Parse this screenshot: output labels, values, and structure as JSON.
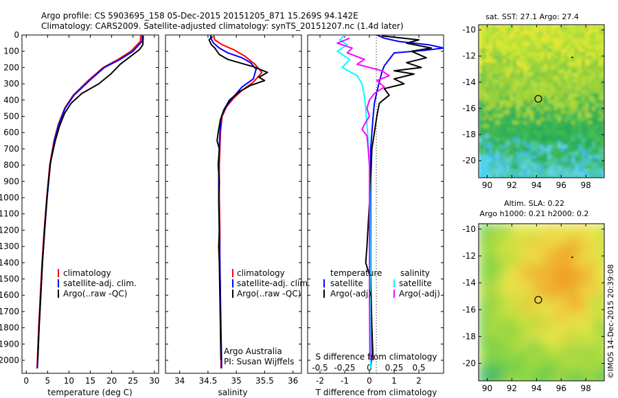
{
  "header": {
    "line1": "Argo profile: CS 5903695_158 05-Dec-2015 20151205_871 15.269S 94.142E",
    "line2": "Climatology: CARS2009. Satellite-adjusted climatology: synTS_20151207.nc (1.4d later)"
  },
  "credits": {
    "imos": "©IMOS 14-Dec-2015 20:39:08",
    "argo_line1": "Argo Australia",
    "argo_line2": "PI: Susan Wijffels"
  },
  "colors": {
    "climatology": "#ff0000",
    "satellite": "#0000ff",
    "argo": "#000000",
    "sat_salinity": "#00ffff",
    "argo_salinity": "#ff00ff"
  },
  "chart_data": [
    {
      "id": "temperature",
      "type": "line",
      "xlabel": "temperature (deg C)",
      "ylabel": "",
      "xlim": [
        -1,
        31
      ],
      "ylim": [
        2080,
        0
      ],
      "xticks": [
        0,
        5,
        10,
        15,
        20,
        25,
        30
      ],
      "yticks": [
        0,
        100,
        200,
        300,
        400,
        500,
        600,
        700,
        800,
        900,
        1000,
        1100,
        1200,
        1300,
        1400,
        1500,
        1600,
        1700,
        1800,
        1900,
        2000
      ],
      "legend": [
        "climatology",
        "satellite-adj. clim.",
        "Argo(..raw -QC)"
      ],
      "series": [
        {
          "name": "climatology",
          "color": "#ff0000",
          "points": [
            [
              26.8,
              0
            ],
            [
              26.7,
              40
            ],
            [
              24.5,
              100
            ],
            [
              21.5,
              150
            ],
            [
              18,
              200
            ],
            [
              14.5,
              280
            ],
            [
              11,
              370
            ],
            [
              9,
              450
            ],
            [
              7.5,
              550
            ],
            [
              6.5,
              650
            ],
            [
              5.5,
              800
            ],
            [
              4.8,
              1000
            ],
            [
              4.2,
              1200
            ],
            [
              3.7,
              1400
            ],
            [
              3.3,
              1600
            ],
            [
              2.9,
              1800
            ],
            [
              2.6,
              2000
            ],
            [
              2.5,
              2050
            ]
          ]
        },
        {
          "name": "satellite-adj. clim.",
          "color": "#0000ff",
          "points": [
            [
              27.2,
              0
            ],
            [
              27.1,
              40
            ],
            [
              25,
              100
            ],
            [
              22,
              150
            ],
            [
              18.3,
              200
            ],
            [
              14.8,
              280
            ],
            [
              11.2,
              370
            ],
            [
              9.1,
              450
            ],
            [
              7.6,
              550
            ],
            [
              6.6,
              650
            ],
            [
              5.6,
              800
            ],
            [
              4.9,
              1000
            ],
            [
              4.3,
              1200
            ],
            [
              3.8,
              1400
            ],
            [
              3.4,
              1600
            ],
            [
              3.0,
              1800
            ],
            [
              2.7,
              2000
            ],
            [
              2.6,
              2050
            ]
          ]
        },
        {
          "name": "Argo(..raw -QC)",
          "color": "#000000",
          "points": [
            [
              27.4,
              5
            ],
            [
              27.3,
              60
            ],
            [
              26.5,
              90
            ],
            [
              24.5,
              130
            ],
            [
              22,
              180
            ],
            [
              19.8,
              240
            ],
            [
              17,
              300
            ],
            [
              13,
              360
            ],
            [
              10.5,
              420
            ],
            [
              9,
              480
            ],
            [
              7.8,
              560
            ],
            [
              6.8,
              650
            ],
            [
              5.7,
              780
            ],
            [
              4.9,
              980
            ],
            [
              4.3,
              1200
            ],
            [
              3.8,
              1400
            ],
            [
              3.4,
              1600
            ],
            [
              3.0,
              1800
            ],
            [
              2.7,
              2000
            ]
          ]
        }
      ]
    },
    {
      "id": "salinity",
      "type": "line",
      "xlabel": "salinity",
      "ylabel": "",
      "xlim": [
        33.75,
        36.15
      ],
      "ylim": [
        2080,
        0
      ],
      "xticks": [
        34,
        34.5,
        35,
        35.5,
        36
      ],
      "legend": [
        "climatology",
        "satellite-adj. clim.",
        "Argo(..raw -QC)"
      ],
      "series": [
        {
          "name": "climatology",
          "color": "#ff0000",
          "points": [
            [
              34.6,
              0
            ],
            [
              34.62,
              30
            ],
            [
              34.75,
              60
            ],
            [
              34.95,
              90
            ],
            [
              35.15,
              130
            ],
            [
              35.33,
              180
            ],
            [
              35.45,
              230
            ],
            [
              35.3,
              290
            ],
            [
              35.1,
              340
            ],
            [
              34.95,
              390
            ],
            [
              34.83,
              440
            ],
            [
              34.75,
              500
            ],
            [
              34.72,
              600
            ],
            [
              34.71,
              700
            ],
            [
              34.7,
              800
            ],
            [
              34.7,
              1000
            ],
            [
              34.71,
              1200
            ],
            [
              34.71,
              1400
            ],
            [
              34.72,
              1600
            ],
            [
              34.72,
              1800
            ],
            [
              34.73,
              2000
            ],
            [
              34.73,
              2050
            ]
          ]
        },
        {
          "name": "satellite-adj. clim.",
          "color": "#0000ff",
          "points": [
            [
              34.55,
              0
            ],
            [
              34.55,
              20
            ],
            [
              34.6,
              50
            ],
            [
              34.7,
              80
            ],
            [
              34.85,
              110
            ],
            [
              35.1,
              140
            ],
            [
              35.25,
              170
            ],
            [
              35.35,
              210
            ],
            [
              35.3,
              270
            ],
            [
              35.1,
              320
            ],
            [
              34.95,
              380
            ],
            [
              34.82,
              440
            ],
            [
              34.74,
              500
            ],
            [
              34.71,
              600
            ],
            [
              34.7,
              700
            ],
            [
              34.69,
              800
            ],
            [
              34.69,
              1000
            ],
            [
              34.7,
              1200
            ],
            [
              34.71,
              1400
            ],
            [
              34.72,
              1600
            ],
            [
              34.73,
              1800
            ],
            [
              34.74,
              2000
            ],
            [
              34.74,
              2050
            ]
          ]
        },
        {
          "name": "Argo(..raw -QC)",
          "color": "#000000",
          "points": [
            [
              34.58,
              10
            ],
            [
              34.52,
              30
            ],
            [
              34.56,
              60
            ],
            [
              34.62,
              80
            ],
            [
              34.7,
              120
            ],
            [
              34.85,
              150
            ],
            [
              35.05,
              170
            ],
            [
              35.3,
              195
            ],
            [
              35.55,
              230
            ],
            [
              35.4,
              260
            ],
            [
              35.5,
              280
            ],
            [
              35.25,
              310
            ],
            [
              35.05,
              350
            ],
            [
              34.88,
              400
            ],
            [
              34.78,
              460
            ],
            [
              34.72,
              520
            ],
            [
              34.68,
              600
            ],
            [
              34.66,
              650
            ],
            [
              34.7,
              700
            ],
            [
              34.68,
              800
            ],
            [
              34.7,
              900
            ],
            [
              34.69,
              1000
            ],
            [
              34.7,
              1200
            ],
            [
              34.69,
              1300
            ],
            [
              34.7,
              1400
            ],
            [
              34.71,
              1600
            ],
            [
              34.72,
              1800
            ],
            [
              34.73,
              2000
            ]
          ]
        }
      ]
    },
    {
      "id": "difference",
      "type": "line",
      "xlabel": "T difference from climatology",
      "xlabel_top": "S difference from climatology",
      "xlim": [
        -2.5,
        3
      ],
      "ylim": [
        2080,
        0
      ],
      "xticks": [
        -2,
        -1,
        0,
        1,
        2
      ],
      "s_ticks": [
        "-0.5",
        "-0.25",
        "0",
        "0.25",
        "0.5"
      ],
      "s_tick_positions": [
        -2,
        -1,
        0,
        1,
        2
      ],
      "legend_titles": [
        "temperature",
        "salinity"
      ],
      "legend": [
        "satellite",
        "Argo(-adj)",
        "satellite",
        "Argo(-adj)"
      ],
      "series": [
        {
          "name": "temperature satellite",
          "color": "#0000ff",
          "points": [
            [
              0.3,
              0
            ],
            [
              0.6,
              20
            ],
            [
              1.2,
              40
            ],
            [
              2.4,
              60
            ],
            [
              3,
              80
            ],
            [
              2.2,
              95
            ],
            [
              1.0,
              110
            ],
            [
              0.8,
              150
            ],
            [
              0.6,
              190
            ],
            [
              0.5,
              230
            ],
            [
              0.4,
              290
            ],
            [
              0.3,
              350
            ],
            [
              0.2,
              420
            ],
            [
              0.15,
              500
            ],
            [
              0.1,
              600
            ],
            [
              0.05,
              700
            ],
            [
              0.05,
              900
            ],
            [
              0.05,
              1200
            ],
            [
              0.05,
              1500
            ],
            [
              0.05,
              1800
            ],
            [
              0.08,
              2000
            ],
            [
              0.05,
              2050
            ]
          ]
        },
        {
          "name": "temperature Argo(-adj)",
          "color": "#000000",
          "points": [
            [
              0.5,
              5
            ],
            [
              2.0,
              30
            ],
            [
              1.5,
              50
            ],
            [
              2.5,
              80
            ],
            [
              1.7,
              100
            ],
            [
              2.3,
              140
            ],
            [
              1.5,
              170
            ],
            [
              2.1,
              200
            ],
            [
              1.0,
              220
            ],
            [
              1.8,
              240
            ],
            [
              1.0,
              270
            ],
            [
              1.4,
              300
            ],
            [
              0.6,
              330
            ],
            [
              0.8,
              370
            ],
            [
              0.4,
              420
            ],
            [
              0.3,
              500
            ],
            [
              0.2,
              600
            ],
            [
              0.1,
              700
            ],
            [
              0.05,
              900
            ],
            [
              -0.1,
              1300
            ],
            [
              -0.15,
              1400
            ],
            [
              0.05,
              1500
            ],
            [
              0.1,
              1800
            ],
            [
              0.15,
              2000
            ]
          ]
        },
        {
          "name": "salinity satellite",
          "color": "#00ffff",
          "points": [
            [
              -1.0,
              0
            ],
            [
              -1.2,
              30
            ],
            [
              -0.9,
              60
            ],
            [
              -1.3,
              100
            ],
            [
              -0.8,
              150
            ],
            [
              -1.1,
              200
            ],
            [
              -0.5,
              250
            ],
            [
              -0.3,
              300
            ],
            [
              -0.2,
              380
            ],
            [
              -0.15,
              450
            ],
            [
              -0.1,
              550
            ],
            [
              -0.05,
              650
            ],
            [
              0,
              800
            ],
            [
              0.02,
              1000
            ],
            [
              0.03,
              1300
            ],
            [
              0.03,
              1600
            ],
            [
              0.05,
              1900
            ],
            [
              0.05,
              2050
            ]
          ]
        },
        {
          "name": "salinity Argo(-adj)",
          "color": "#ff00ff",
          "points": [
            [
              -0.8,
              20
            ],
            [
              -1.3,
              50
            ],
            [
              -0.7,
              80
            ],
            [
              -0.9,
              110
            ],
            [
              -0.2,
              150
            ],
            [
              -0.5,
              180
            ],
            [
              0.5,
              220
            ],
            [
              0.8,
              250
            ],
            [
              0.3,
              280
            ],
            [
              0.6,
              320
            ],
            [
              0.2,
              360
            ],
            [
              0.0,
              400
            ],
            [
              -0.1,
              450
            ],
            [
              0.0,
              500
            ],
            [
              -0.2,
              550
            ],
            [
              -0.3,
              580
            ],
            [
              -0.1,
              620
            ],
            [
              -0.05,
              700
            ],
            [
              0.0,
              800
            ],
            [
              0.0,
              1000
            ],
            [
              0.0,
              1300
            ],
            [
              0.0,
              1600
            ],
            [
              0.02,
              2000
            ]
          ]
        }
      ]
    },
    {
      "id": "sst_map",
      "type": "heatmap",
      "title": "sat. SST: 27.1  Argo: 27.4",
      "xlim": [
        89.3,
        99.5
      ],
      "ylim": [
        -21.3,
        -9.6
      ],
      "xticks": [
        90,
        92,
        94,
        96,
        98
      ],
      "yticks": [
        -10,
        -12,
        -14,
        -16,
        -18,
        -20
      ],
      "marker": [
        94.142,
        -15.269
      ]
    },
    {
      "id": "sla_map",
      "type": "heatmap",
      "title_line1": "Altim. SLA: 0.22",
      "title_line2": "Argo h1000: 0.21  h2000: 0.2",
      "xlim": [
        89.3,
        99.5
      ],
      "ylim": [
        -21.3,
        -9.6
      ],
      "xticks": [
        90,
        92,
        94,
        96,
        98
      ],
      "yticks": [
        -10,
        -12,
        -14,
        -16,
        -18,
        -20
      ],
      "marker": [
        94.142,
        -15.269
      ]
    }
  ]
}
